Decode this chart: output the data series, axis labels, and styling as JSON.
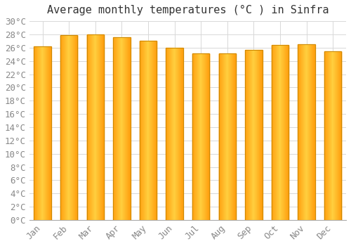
{
  "title": "Average monthly temperatures (°C ) in Sinfra",
  "months": [
    "Jan",
    "Feb",
    "Mar",
    "Apr",
    "May",
    "Jun",
    "Jul",
    "Aug",
    "Sep",
    "Oct",
    "Nov",
    "Dec"
  ],
  "values": [
    26.2,
    27.9,
    28.0,
    27.6,
    27.0,
    26.0,
    25.1,
    25.1,
    25.7,
    26.4,
    26.5,
    25.5
  ],
  "ylim": [
    0,
    30
  ],
  "ytick_step": 2,
  "background_color": "#ffffff",
  "grid_color": "#d8d8d8",
  "title_fontsize": 11,
  "tick_fontsize": 9,
  "bar_width": 0.65,
  "bar_edge_color": "#CC8800",
  "bar_color_center": "#FFD040",
  "bar_color_edge": "#FFA010",
  "title_color": "#333333",
  "tick_color": "#888888"
}
